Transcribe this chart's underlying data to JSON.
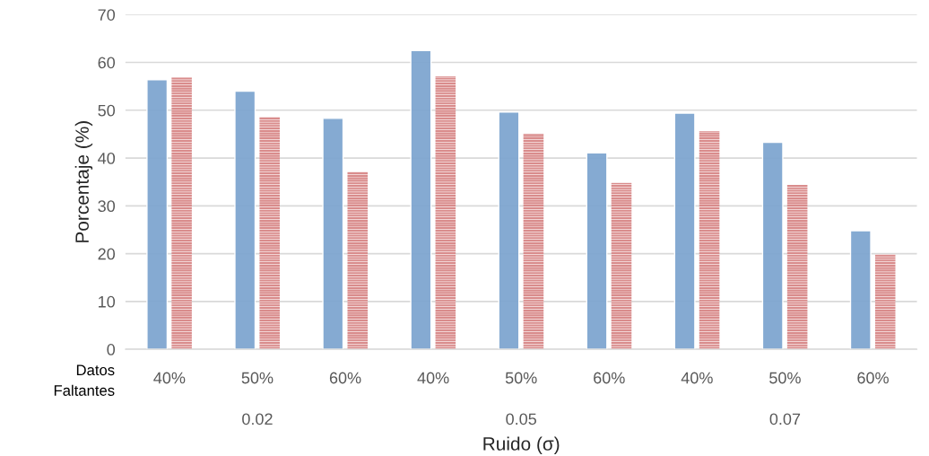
{
  "chart_data": {
    "type": "bar",
    "categories": [
      "40%",
      "50%",
      "60%",
      "40%",
      "50%",
      "60%",
      "40%",
      "50%",
      "60%"
    ],
    "series": [
      {
        "color": "#7fa6d0",
        "values": [
          56.4,
          54.0,
          48.3,
          62.5,
          49.6,
          41.1,
          49.4,
          43.3,
          24.8
        ]
      },
      {
        "color": "#d98c8c",
        "values": [
          56.9,
          48.6,
          37.1,
          57.1,
          45.1,
          34.8,
          45.6,
          34.4,
          19.9
        ]
      }
    ],
    "xlabel": "Ruido (σ)",
    "ylabel": "Porcentaje (%)",
    "ylim": [
      0,
      70
    ],
    "yticks": [
      0,
      10,
      20,
      30,
      40,
      50,
      60,
      70
    ],
    "grid": "y",
    "legend": false,
    "annotations": [
      "Datos\nFaltantes",
      "0.02",
      "0.05",
      "0.07"
    ]
  }
}
